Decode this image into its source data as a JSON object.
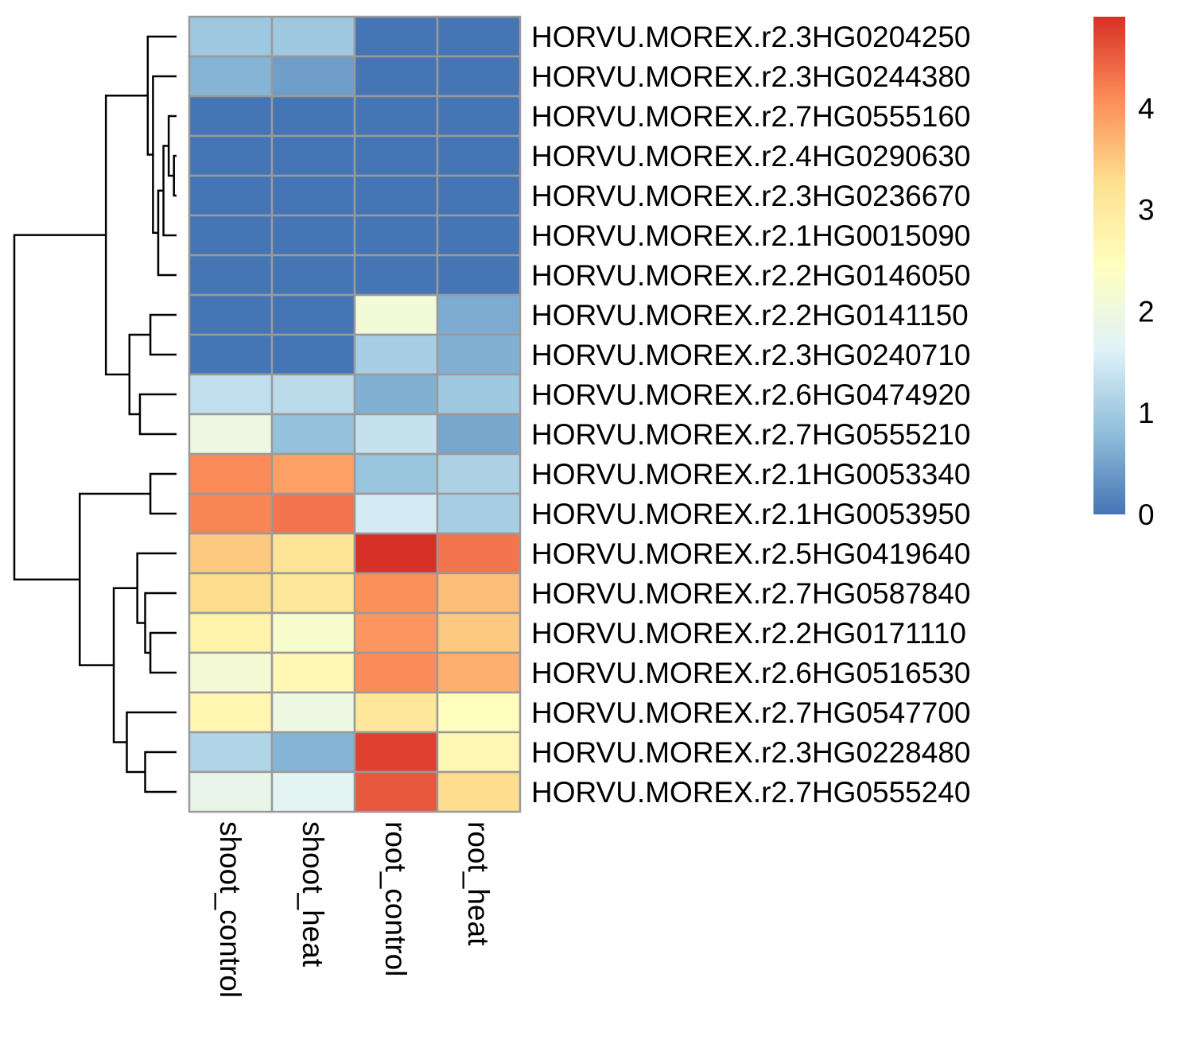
{
  "chart_data": {
    "type": "heatmap",
    "columns": [
      "shoot_control",
      "shoot_heat",
      "root_control",
      "root_heat"
    ],
    "rows": [
      "HORVU.MOREX.r2.3HG0204250",
      "HORVU.MOREX.r2.3HG0244380",
      "HORVU.MOREX.r2.7HG0555160",
      "HORVU.MOREX.r2.4HG0290630",
      "HORVU.MOREX.r2.3HG0236670",
      "HORVU.MOREX.r2.1HG0015090",
      "HORVU.MOREX.r2.2HG0146050",
      "HORVU.MOREX.r2.2HG0141150",
      "HORVU.MOREX.r2.3HG0240710",
      "HORVU.MOREX.r2.6HG0474920",
      "HORVU.MOREX.r2.7HG0555210",
      "HORVU.MOREX.r2.1HG0053340",
      "HORVU.MOREX.r2.1HG0053950",
      "HORVU.MOREX.r2.5HG0419640",
      "HORVU.MOREX.r2.7HG0587840",
      "HORVU.MOREX.r2.2HG0171110",
      "HORVU.MOREX.r2.6HG0516530",
      "HORVU.MOREX.r2.7HG0547700",
      "HORVU.MOREX.r2.3HG0228480",
      "HORVU.MOREX.r2.7HG0555240"
    ],
    "values": [
      [
        0.95,
        0.95,
        0.0,
        0.0
      ],
      [
        0.7,
        0.45,
        0.0,
        0.0
      ],
      [
        0.0,
        0.0,
        0.0,
        0.0
      ],
      [
        0.0,
        0.0,
        0.0,
        0.0
      ],
      [
        0.0,
        0.0,
        0.0,
        0.0
      ],
      [
        0.0,
        0.0,
        0.0,
        0.0
      ],
      [
        0.0,
        0.0,
        0.0,
        0.0
      ],
      [
        0.0,
        0.0,
        2.1,
        0.6
      ],
      [
        0.0,
        0.0,
        1.05,
        0.65
      ],
      [
        1.3,
        1.25,
        0.65,
        0.95
      ],
      [
        1.95,
        0.85,
        1.35,
        0.55
      ],
      [
        4.1,
        3.9,
        0.9,
        1.1
      ],
      [
        4.15,
        4.3,
        1.5,
        1.05
      ],
      [
        3.5,
        3.15,
        4.9,
        4.3
      ],
      [
        3.3,
        3.1,
        4.05,
        3.6
      ],
      [
        2.8,
        2.25,
        4.0,
        3.5
      ],
      [
        2.15,
        2.65,
        4.1,
        3.75
      ],
      [
        2.7,
        1.95,
        3.1,
        2.5
      ],
      [
        1.15,
        0.7,
        4.75,
        2.65
      ],
      [
        1.85,
        1.7,
        4.55,
        3.3
      ]
    ],
    "colorbar": {
      "min": 0,
      "max": 4.9,
      "ticks": [
        "0",
        "1",
        "2",
        "3",
        "4"
      ],
      "tick_values": [
        0,
        1,
        2,
        3,
        4
      ],
      "colors": [
        "#4575b4",
        "#91bfdb",
        "#e0f3f8",
        "#ffffbf",
        "#fee090",
        "#fc8d59",
        "#d73027"
      ]
    },
    "row_dendrogram": {
      "merges": [
        [
          3,
          4,
          1.0
        ],
        [
          2,
          100,
          3.0
        ],
        [
          5,
          101,
          5.0
        ],
        [
          6,
          102,
          7.0
        ],
        [
          1,
          103,
          9.0
        ],
        [
          0,
          104,
          11.0
        ],
        [
          7,
          8,
          10.0
        ],
        [
          9,
          10,
          14.0
        ],
        [
          106,
          107,
          18.0
        ],
        [
          105,
          108,
          27.0
        ],
        [
          11,
          12,
          10.0
        ],
        [
          15,
          16,
          10.0
        ],
        [
          14,
          111,
          12.0
        ],
        [
          13,
          112,
          15.0
        ],
        [
          18,
          19,
          12.0
        ],
        [
          17,
          114,
          19.0
        ],
        [
          113,
          115,
          24.0
        ],
        [
          110,
          116,
          37.0
        ],
        [
          109,
          117,
          62.0
        ]
      ],
      "max_height": 62.0
    },
    "grid": true,
    "legend_position": "right"
  }
}
